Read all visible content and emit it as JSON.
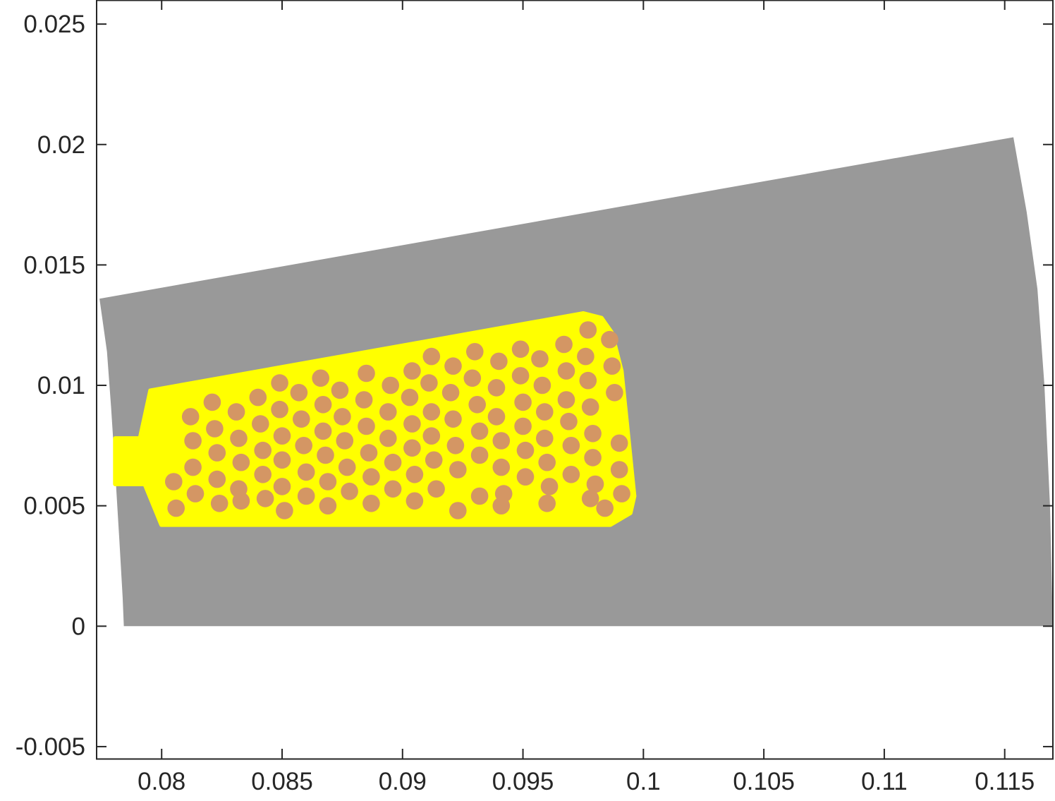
{
  "colors": {
    "iron": "#999999",
    "slot": "#ffff00",
    "conductor": "#d49664",
    "axis": "#262626",
    "background": "#ffffff"
  },
  "chart_data": {
    "type": "geometry-plot",
    "x_range": [
      0.0773,
      0.117
    ],
    "y_range": [
      -0.0055,
      0.026
    ],
    "x_ticks": [
      {
        "value": 0.08,
        "label": "0.08"
      },
      {
        "value": 0.085,
        "label": "0.085"
      },
      {
        "value": 0.09,
        "label": "0.09"
      },
      {
        "value": 0.095,
        "label": "0.095"
      },
      {
        "value": 0.1,
        "label": "0.1"
      },
      {
        "value": 0.105,
        "label": "0.105"
      },
      {
        "value": 0.11,
        "label": "0.11"
      },
      {
        "value": 0.115,
        "label": "0.115"
      }
    ],
    "y_ticks": [
      {
        "value": -0.005,
        "label": "-0.005"
      },
      {
        "value": 0,
        "label": "0"
      },
      {
        "value": 0.005,
        "label": "0.005"
      },
      {
        "value": 0.01,
        "label": "0.01"
      },
      {
        "value": 0.015,
        "label": "0.015"
      },
      {
        "value": 0.02,
        "label": "0.02"
      },
      {
        "value": 0.025,
        "label": "0.025"
      }
    ],
    "stator_sector": [
      [
        0.07843,
        0
      ],
      [
        0.07838,
        0.0012
      ],
      [
        0.07825,
        0.0035
      ],
      [
        0.07806,
        0.0066
      ],
      [
        0.0779,
        0.0091
      ],
      [
        0.07773,
        0.0114
      ],
      [
        0.07742,
        0.0136
      ],
      [
        0.11536,
        0.0203
      ],
      [
        0.11591,
        0.0172
      ],
      [
        0.11636,
        0.014
      ],
      [
        0.11665,
        0.01
      ],
      [
        0.11688,
        0.005
      ],
      [
        0.117,
        0
      ]
    ],
    "slot_outline": [
      [
        0.07999,
        0.00421
      ],
      [
        0.09863,
        0.00421
      ],
      [
        0.09946,
        0.0047
      ],
      [
        0.09962,
        0.0054
      ],
      [
        0.09909,
        0.0106
      ],
      [
        0.09868,
        0.0122
      ],
      [
        0.09826,
        0.0128
      ],
      [
        0.09751,
        0.01299
      ],
      [
        0.07953,
        0.00978
      ],
      [
        0.0791,
        0.0078
      ],
      [
        0.07807,
        0.0078
      ],
      [
        0.07807,
        0.0059
      ],
      [
        0.0793,
        0.0059
      ]
    ],
    "conductor_radius": 0.00036,
    "conductors": [
      [
        0.0812,
        0.0087
      ],
      [
        0.0821,
        0.0093
      ],
      [
        0.0831,
        0.0089
      ],
      [
        0.084,
        0.0095
      ],
      [
        0.0849,
        0.0101
      ],
      [
        0.0857,
        0.0097
      ],
      [
        0.0866,
        0.0103
      ],
      [
        0.0874,
        0.0098
      ],
      [
        0.0885,
        0.0105
      ],
      [
        0.0895,
        0.01
      ],
      [
        0.0904,
        0.0106
      ],
      [
        0.0912,
        0.0112
      ],
      [
        0.0921,
        0.0108
      ],
      [
        0.093,
        0.0114
      ],
      [
        0.094,
        0.011
      ],
      [
        0.0949,
        0.0115
      ],
      [
        0.0957,
        0.0111
      ],
      [
        0.0967,
        0.0117
      ],
      [
        0.0976,
        0.0112
      ],
      [
        0.0977,
        0.0123
      ],
      [
        0.0986,
        0.0119
      ],
      [
        0.0813,
        0.0077
      ],
      [
        0.0822,
        0.0082
      ],
      [
        0.0832,
        0.0078
      ],
      [
        0.0841,
        0.0084
      ],
      [
        0.0849,
        0.009
      ],
      [
        0.0858,
        0.0086
      ],
      [
        0.0867,
        0.0092
      ],
      [
        0.0875,
        0.0087
      ],
      [
        0.0884,
        0.0094
      ],
      [
        0.0894,
        0.0089
      ],
      [
        0.0903,
        0.0095
      ],
      [
        0.0911,
        0.0101
      ],
      [
        0.092,
        0.0097
      ],
      [
        0.0929,
        0.0103
      ],
      [
        0.0939,
        0.0099
      ],
      [
        0.0949,
        0.0104
      ],
      [
        0.0958,
        0.01
      ],
      [
        0.0968,
        0.0106
      ],
      [
        0.0977,
        0.0102
      ],
      [
        0.0987,
        0.0108
      ],
      [
        0.0813,
        0.0066
      ],
      [
        0.0823,
        0.0072
      ],
      [
        0.0833,
        0.0068
      ],
      [
        0.0842,
        0.0073
      ],
      [
        0.085,
        0.0079
      ],
      [
        0.0859,
        0.0075
      ],
      [
        0.0867,
        0.0081
      ],
      [
        0.0876,
        0.0077
      ],
      [
        0.0885,
        0.0083
      ],
      [
        0.0894,
        0.0078
      ],
      [
        0.0904,
        0.0084
      ],
      [
        0.0912,
        0.0089
      ],
      [
        0.0921,
        0.0086
      ],
      [
        0.0931,
        0.0092
      ],
      [
        0.0939,
        0.0087
      ],
      [
        0.095,
        0.0093
      ],
      [
        0.0959,
        0.0089
      ],
      [
        0.0968,
        0.0094
      ],
      [
        0.0978,
        0.0091
      ],
      [
        0.0988,
        0.0097
      ],
      [
        0.0805,
        0.006
      ],
      [
        0.0814,
        0.0055
      ],
      [
        0.0823,
        0.0061
      ],
      [
        0.0832,
        0.0057
      ],
      [
        0.0842,
        0.0063
      ],
      [
        0.085,
        0.0069
      ],
      [
        0.086,
        0.0064
      ],
      [
        0.0868,
        0.0071
      ],
      [
        0.0877,
        0.0066
      ],
      [
        0.0886,
        0.0072
      ],
      [
        0.0896,
        0.0068
      ],
      [
        0.0904,
        0.0074
      ],
      [
        0.0912,
        0.0079
      ],
      [
        0.0922,
        0.0075
      ],
      [
        0.0932,
        0.0081
      ],
      [
        0.0941,
        0.0077
      ],
      [
        0.095,
        0.0083
      ],
      [
        0.0959,
        0.0078
      ],
      [
        0.0969,
        0.0085
      ],
      [
        0.0979,
        0.008
      ],
      [
        0.099,
        0.0076
      ],
      [
        0.0806,
        0.0049
      ],
      [
        0.0824,
        0.0051
      ],
      [
        0.0843,
        0.0053
      ],
      [
        0.085,
        0.0058
      ],
      [
        0.086,
        0.0054
      ],
      [
        0.0869,
        0.006
      ],
      [
        0.0878,
        0.0056
      ],
      [
        0.0887,
        0.0062
      ],
      [
        0.0896,
        0.0057
      ],
      [
        0.0905,
        0.0063
      ],
      [
        0.0913,
        0.0069
      ],
      [
        0.0923,
        0.0065
      ],
      [
        0.0932,
        0.0071
      ],
      [
        0.0941,
        0.0066
      ],
      [
        0.0951,
        0.0073
      ],
      [
        0.096,
        0.0068
      ],
      [
        0.097,
        0.0075
      ],
      [
        0.0979,
        0.007
      ],
      [
        0.099,
        0.0065
      ],
      [
        0.0833,
        0.0052
      ],
      [
        0.0851,
        0.0048
      ],
      [
        0.0869,
        0.005
      ],
      [
        0.0887,
        0.0051
      ],
      [
        0.0905,
        0.0052
      ],
      [
        0.0923,
        0.0048
      ],
      [
        0.0932,
        0.0054
      ],
      [
        0.0942,
        0.0055
      ],
      [
        0.0951,
        0.0062
      ],
      [
        0.0961,
        0.0058
      ],
      [
        0.097,
        0.0063
      ],
      [
        0.098,
        0.0059
      ],
      [
        0.0991,
        0.0055
      ],
      [
        0.0914,
        0.0057
      ],
      [
        0.0941,
        0.005
      ],
      [
        0.096,
        0.0051
      ],
      [
        0.0978,
        0.0053
      ],
      [
        0.0984,
        0.0049
      ]
    ]
  }
}
